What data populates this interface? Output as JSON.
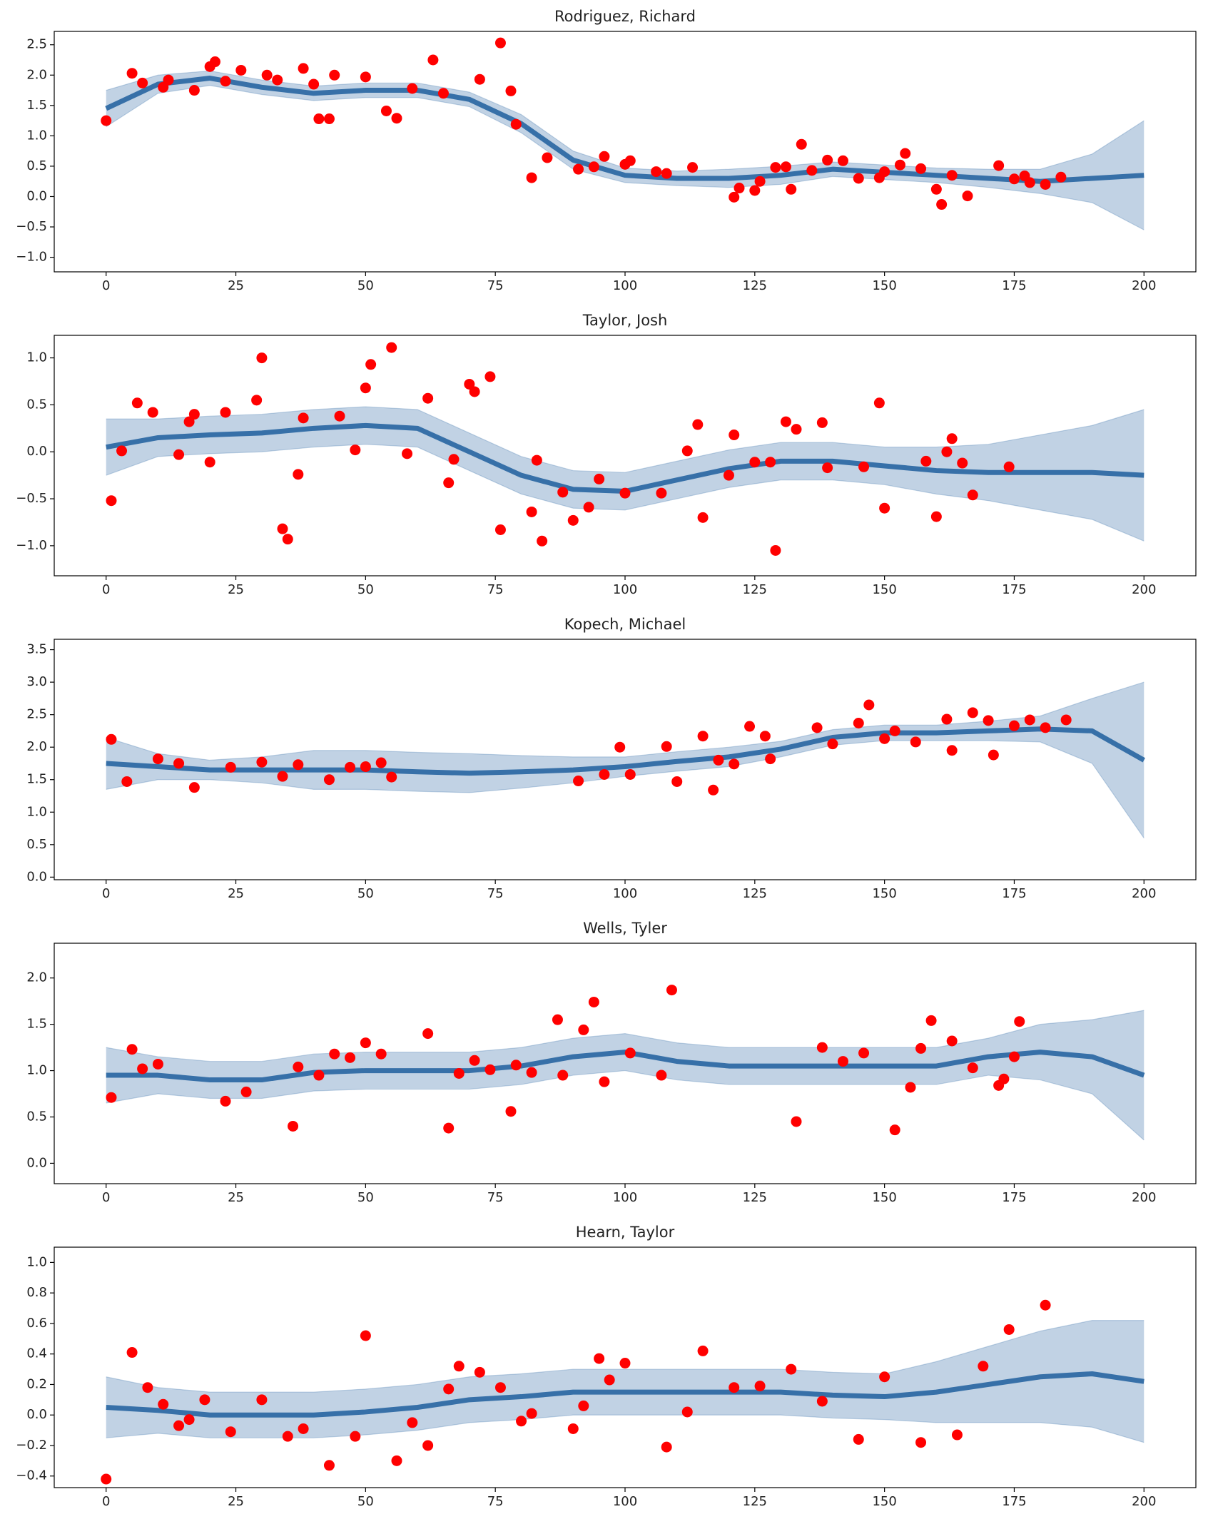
{
  "chart_data": [
    {
      "type": "scatter",
      "title": "Rodriguez, Richard",
      "color": "#ff0000",
      "x": [
        0,
        5,
        7,
        11,
        12,
        17,
        20,
        21,
        23,
        26,
        31,
        33,
        38,
        40,
        41,
        43,
        44,
        50,
        54,
        56,
        59,
        63,
        65,
        72,
        76,
        78,
        79,
        82,
        85,
        91,
        94,
        96,
        100,
        101,
        106,
        108,
        113,
        121,
        122,
        125,
        126,
        129,
        131,
        132,
        134,
        136,
        139,
        142,
        145,
        149,
        150,
        153,
        154,
        157,
        160,
        161,
        163,
        166,
        172,
        175,
        177,
        178,
        181,
        184
      ],
      "values": [
        1.25,
        2.03,
        1.87,
        1.8,
        1.92,
        1.75,
        2.14,
        2.22,
        1.9,
        2.08,
        2.0,
        1.92,
        2.11,
        1.85,
        1.28,
        1.28,
        2.0,
        1.97,
        1.41,
        1.29,
        1.78,
        2.25,
        1.7,
        1.93,
        2.53,
        1.74,
        1.19,
        0.31,
        0.64,
        0.45,
        0.49,
        0.66,
        0.53,
        0.59,
        0.41,
        0.38,
        0.48,
        -0.01,
        0.14,
        0.1,
        0.25,
        0.48,
        0.49,
        0.12,
        0.86,
        0.43,
        0.6,
        0.59,
        0.3,
        0.31,
        0.41,
        0.52,
        0.71,
        0.46,
        0.12,
        -0.13,
        0.35,
        0.01,
        0.51,
        0.29,
        0.34,
        0.23,
        0.2,
        0.32
      ],
      "band": {
        "color": "#1f5f9e",
        "x": [
          0,
          10,
          20,
          30,
          40,
          50,
          60,
          70,
          80,
          90,
          100,
          110,
          120,
          130,
          140,
          150,
          160,
          170,
          180,
          190,
          200
        ],
        "median": [
          1.45,
          1.85,
          1.95,
          1.8,
          1.7,
          1.75,
          1.75,
          1.6,
          1.2,
          0.6,
          0.35,
          0.3,
          0.3,
          0.35,
          0.45,
          0.4,
          0.35,
          0.3,
          0.25,
          0.3,
          0.35
        ],
        "lower": [
          1.15,
          1.7,
          1.83,
          1.68,
          1.58,
          1.63,
          1.63,
          1.48,
          1.05,
          0.45,
          0.23,
          0.18,
          0.15,
          0.2,
          0.33,
          0.28,
          0.23,
          0.15,
          0.05,
          -0.1,
          -0.55
        ],
        "upper": [
          1.75,
          2.0,
          2.07,
          1.92,
          1.82,
          1.87,
          1.87,
          1.72,
          1.35,
          0.75,
          0.47,
          0.42,
          0.45,
          0.5,
          0.57,
          0.52,
          0.47,
          0.45,
          0.45,
          0.7,
          1.25
        ]
      },
      "xlim": [
        -10,
        210
      ],
      "ylim": [
        -1.24,
        2.72
      ],
      "xticks": [
        0,
        25,
        50,
        75,
        100,
        125,
        150,
        175,
        200
      ],
      "yticks": [
        {
          "value": -1.0,
          "label": "−1.0"
        },
        {
          "value": -0.5,
          "label": "−0.5"
        },
        {
          "value": 0.0,
          "label": "0.0"
        },
        0.5,
        {
          "value": 1.0,
          "label": "1.0"
        },
        1.5,
        {
          "value": 2.0,
          "label": "2.0"
        },
        2.5
      ]
    },
    {
      "type": "scatter",
      "title": "Taylor, Josh",
      "color": "#ff0000",
      "x": [
        1,
        3,
        6,
        9,
        14,
        16,
        17,
        20,
        23,
        29,
        30,
        34,
        35,
        37,
        38,
        45,
        48,
        50,
        51,
        55,
        58,
        62,
        66,
        67,
        70,
        71,
        74,
        76,
        82,
        83,
        84,
        88,
        90,
        93,
        95,
        100,
        107,
        112,
        114,
        115,
        120,
        121,
        125,
        128,
        129,
        131,
        133,
        138,
        139,
        146,
        149,
        150,
        158,
        160,
        162,
        163,
        165,
        167,
        174
      ],
      "values": [
        -0.52,
        0.01,
        0.52,
        0.42,
        -0.03,
        0.32,
        0.4,
        -0.11,
        0.42,
        0.55,
        1.0,
        -0.82,
        -0.93,
        -0.24,
        0.36,
        0.38,
        0.02,
        0.68,
        0.93,
        1.11,
        -0.02,
        0.57,
        -0.33,
        -0.08,
        0.72,
        0.64,
        0.8,
        -0.83,
        -0.64,
        -0.09,
        -0.95,
        -0.43,
        -0.73,
        -0.59,
        -0.29,
        -0.44,
        -0.44,
        0.01,
        0.29,
        -0.7,
        -0.25,
        0.18,
        -0.11,
        -0.11,
        -1.05,
        0.32,
        0.24,
        0.31,
        -0.17,
        -0.16,
        0.52,
        -0.6,
        -0.1,
        -0.69,
        0.0,
        0.14,
        -0.12,
        -0.46,
        -0.16
      ],
      "band": {
        "color": "#1f5f9e",
        "x": [
          0,
          10,
          20,
          30,
          40,
          50,
          60,
          70,
          80,
          90,
          100,
          110,
          120,
          130,
          140,
          150,
          160,
          170,
          180,
          190,
          200
        ],
        "median": [
          0.05,
          0.15,
          0.18,
          0.2,
          0.25,
          0.28,
          0.25,
          0.0,
          -0.25,
          -0.4,
          -0.42,
          -0.3,
          -0.18,
          -0.1,
          -0.1,
          -0.15,
          -0.2,
          -0.22,
          -0.22,
          -0.22,
          -0.25
        ],
        "lower": [
          -0.25,
          -0.05,
          -0.02,
          0.0,
          0.05,
          0.08,
          0.05,
          -0.2,
          -0.45,
          -0.6,
          -0.62,
          -0.5,
          -0.38,
          -0.3,
          -0.3,
          -0.35,
          -0.45,
          -0.52,
          -0.62,
          -0.72,
          -0.95
        ],
        "upper": [
          0.35,
          0.35,
          0.38,
          0.4,
          0.45,
          0.48,
          0.45,
          0.2,
          -0.05,
          -0.2,
          -0.22,
          -0.1,
          0.02,
          0.1,
          0.1,
          0.05,
          0.05,
          0.08,
          0.18,
          0.28,
          0.45
        ]
      },
      "xlim": [
        -10,
        210
      ],
      "ylim": [
        -1.32,
        1.24
      ],
      "xticks": [
        0,
        25,
        50,
        75,
        100,
        125,
        150,
        175,
        200
      ],
      "yticks": [
        {
          "value": -1.0,
          "label": "−1.0"
        },
        {
          "value": -0.5,
          "label": "−0.5"
        },
        {
          "value": 0.0,
          "label": "0.0"
        },
        0.5,
        {
          "value": 1.0,
          "label": "1.0"
        }
      ]
    },
    {
      "type": "scatter",
      "title": "Kopech, Michael",
      "color": "#ff0000",
      "x": [
        1,
        4,
        10,
        14,
        17,
        24,
        30,
        34,
        37,
        43,
        47,
        50,
        53,
        55,
        91,
        96,
        99,
        101,
        108,
        110,
        115,
        117,
        118,
        121,
        124,
        127,
        128,
        137,
        140,
        145,
        147,
        150,
        152,
        156,
        162,
        163,
        167,
        170,
        171,
        175,
        178,
        181,
        185
      ],
      "values": [
        2.12,
        1.47,
        1.82,
        1.75,
        1.38,
        1.69,
        1.77,
        1.55,
        1.73,
        1.5,
        1.69,
        1.7,
        1.76,
        1.54,
        1.48,
        1.58,
        2.0,
        1.58,
        2.01,
        1.47,
        2.17,
        1.34,
        1.8,
        1.74,
        2.32,
        2.17,
        1.82,
        2.3,
        2.05,
        2.37,
        2.65,
        2.13,
        2.25,
        2.08,
        2.43,
        1.95,
        2.53,
        2.41,
        1.88,
        2.33,
        2.42,
        2.3,
        2.42
      ],
      "band": {
        "color": "#1f5f9e",
        "x": [
          0,
          10,
          20,
          30,
          40,
          50,
          60,
          70,
          80,
          90,
          100,
          110,
          120,
          130,
          140,
          150,
          160,
          170,
          180,
          190,
          200
        ],
        "median": [
          1.75,
          1.7,
          1.65,
          1.65,
          1.65,
          1.65,
          1.62,
          1.6,
          1.62,
          1.65,
          1.7,
          1.78,
          1.85,
          1.97,
          2.15,
          2.22,
          2.22,
          2.25,
          2.28,
          2.25,
          1.8
        ],
        "lower": [
          1.35,
          1.5,
          1.5,
          1.45,
          1.35,
          1.35,
          1.32,
          1.3,
          1.37,
          1.45,
          1.55,
          1.63,
          1.7,
          1.85,
          2.03,
          2.1,
          2.1,
          2.1,
          2.08,
          1.75,
          0.6
        ],
        "upper": [
          2.15,
          1.9,
          1.8,
          1.85,
          1.95,
          1.95,
          1.92,
          1.9,
          1.87,
          1.85,
          1.85,
          1.93,
          2.0,
          2.09,
          2.27,
          2.34,
          2.34,
          2.4,
          2.48,
          2.75,
          3.0
        ]
      },
      "xlim": [
        -10,
        210
      ],
      "ylim": [
        -0.04,
        3.66
      ],
      "xticks": [
        0,
        25,
        50,
        75,
        100,
        125,
        150,
        175,
        200
      ],
      "yticks": [
        {
          "value": 0.0,
          "label": "0.0"
        },
        0.5,
        {
          "value": 1.0,
          "label": "1.0"
        },
        1.5,
        {
          "value": 2.0,
          "label": "2.0"
        },
        2.5,
        {
          "value": 3.0,
          "label": "3.0"
        },
        3.5
      ]
    },
    {
      "type": "scatter",
      "title": "Wells, Tyler",
      "color": "#ff0000",
      "x": [
        1,
        5,
        7,
        10,
        23,
        27,
        36,
        37,
        41,
        44,
        47,
        50,
        53,
        62,
        66,
        68,
        71,
        74,
        78,
        79,
        82,
        87,
        88,
        92,
        94,
        96,
        101,
        107,
        109,
        133,
        138,
        142,
        146,
        152,
        155,
        157,
        159,
        163,
        167,
        172,
        173,
        175,
        176
      ],
      "values": [
        0.71,
        1.23,
        1.02,
        1.07,
        0.67,
        0.77,
        0.4,
        1.04,
        0.95,
        1.18,
        1.14,
        1.3,
        1.18,
        1.4,
        0.38,
        0.97,
        1.11,
        1.01,
        0.56,
        1.06,
        0.98,
        1.55,
        0.95,
        1.44,
        1.74,
        0.88,
        1.19,
        0.95,
        1.87,
        0.45,
        1.25,
        1.1,
        1.19,
        0.36,
        0.82,
        1.24,
        1.54,
        1.32,
        1.03,
        0.84,
        0.91,
        1.15,
        1.53
      ],
      "band": {
        "color": "#1f5f9e",
        "x": [
          0,
          10,
          20,
          30,
          40,
          50,
          60,
          70,
          80,
          90,
          100,
          110,
          120,
          130,
          140,
          150,
          160,
          170,
          180,
          190,
          200
        ],
        "median": [
          0.95,
          0.95,
          0.9,
          0.9,
          0.98,
          1.0,
          1.0,
          1.0,
          1.05,
          1.15,
          1.2,
          1.1,
          1.05,
          1.05,
          1.05,
          1.05,
          1.05,
          1.15,
          1.2,
          1.15,
          0.95
        ],
        "lower": [
          0.65,
          0.75,
          0.7,
          0.7,
          0.78,
          0.8,
          0.8,
          0.8,
          0.85,
          0.95,
          1.0,
          0.9,
          0.85,
          0.85,
          0.85,
          0.85,
          0.85,
          0.95,
          0.9,
          0.75,
          0.25
        ],
        "upper": [
          1.25,
          1.15,
          1.1,
          1.1,
          1.18,
          1.2,
          1.2,
          1.2,
          1.25,
          1.35,
          1.4,
          1.3,
          1.25,
          1.25,
          1.25,
          1.25,
          1.25,
          1.35,
          1.5,
          1.55,
          1.65
        ]
      },
      "xlim": [
        -10,
        210
      ],
      "ylim": [
        -0.22,
        2.375
      ],
      "xticks": [
        0,
        25,
        50,
        75,
        100,
        125,
        150,
        175,
        200
      ],
      "yticks": [
        {
          "value": 0.0,
          "label": "0.0"
        },
        0.5,
        {
          "value": 1.0,
          "label": "1.0"
        },
        1.5,
        {
          "value": 2.0,
          "label": "2.0"
        }
      ]
    },
    {
      "type": "scatter",
      "title": "Hearn, Taylor",
      "color": "#ff0000",
      "x": [
        0,
        5,
        8,
        11,
        14,
        16,
        19,
        24,
        30,
        35,
        38,
        43,
        48,
        50,
        56,
        59,
        62,
        66,
        68,
        72,
        76,
        80,
        82,
        90,
        92,
        95,
        97,
        100,
        108,
        112,
        115,
        121,
        126,
        132,
        138,
        145,
        150,
        157,
        164,
        169,
        174,
        181
      ],
      "values": [
        -0.42,
        0.41,
        0.18,
        0.07,
        -0.07,
        -0.03,
        0.1,
        -0.11,
        0.1,
        -0.14,
        -0.09,
        -0.33,
        -0.14,
        0.52,
        -0.3,
        -0.05,
        -0.2,
        0.17,
        0.32,
        0.28,
        0.18,
        -0.04,
        0.01,
        -0.09,
        0.06,
        0.37,
        0.23,
        0.34,
        -0.21,
        0.02,
        0.42,
        0.18,
        0.19,
        0.3,
        0.09,
        -0.16,
        0.25,
        -0.18,
        -0.13,
        0.32,
        0.56,
        0.72
      ],
      "band": {
        "color": "#1f5f9e",
        "x": [
          0,
          10,
          20,
          30,
          40,
          50,
          60,
          70,
          80,
          90,
          100,
          110,
          120,
          130,
          140,
          150,
          160,
          170,
          180,
          190,
          200
        ],
        "median": [
          0.05,
          0.03,
          0.0,
          0.0,
          0.0,
          0.02,
          0.05,
          0.1,
          0.12,
          0.15,
          0.15,
          0.15,
          0.15,
          0.15,
          0.13,
          0.12,
          0.15,
          0.2,
          0.25,
          0.27,
          0.22
        ],
        "lower": [
          -0.15,
          -0.12,
          -0.15,
          -0.15,
          -0.15,
          -0.13,
          -0.1,
          -0.05,
          -0.03,
          0.0,
          0.0,
          0.0,
          0.0,
          0.0,
          -0.02,
          -0.03,
          -0.05,
          -0.05,
          -0.05,
          -0.08,
          -0.18
        ],
        "upper": [
          0.25,
          0.18,
          0.15,
          0.15,
          0.15,
          0.17,
          0.2,
          0.25,
          0.27,
          0.3,
          0.3,
          0.3,
          0.3,
          0.3,
          0.28,
          0.27,
          0.35,
          0.45,
          0.55,
          0.62,
          0.62
        ]
      },
      "xlim": [
        -10,
        210
      ],
      "ylim": [
        -0.476,
        1.1
      ],
      "xticks": [
        0,
        25,
        50,
        75,
        100,
        125,
        150,
        175,
        200
      ],
      "yticks": [
        {
          "value": -0.4,
          "label": "−0.4"
        },
        {
          "value": -0.2,
          "label": "−0.2"
        },
        {
          "value": 0.0,
          "label": "0.0"
        },
        0.2,
        0.4,
        0.6,
        0.8,
        {
          "value": 1.0,
          "label": "1.0"
        }
      ]
    }
  ]
}
